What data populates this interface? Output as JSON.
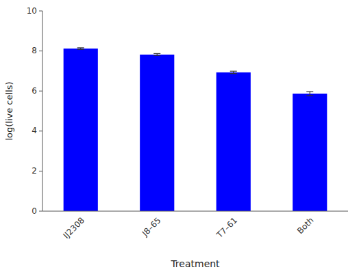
{
  "chart_data": {
    "type": "bar",
    "categories": [
      "IJ2308",
      "J8–65",
      "T7–61",
      "Both"
    ],
    "values": [
      8.12,
      7.82,
      6.93,
      5.87
    ],
    "errors": [
      0.04,
      0.05,
      0.06,
      0.1
    ],
    "color": "#0000FF",
    "xlabel": "Treatment",
    "ylabel": "log(live cells)",
    "ylim": [
      0,
      10
    ],
    "yticks": [
      0,
      2,
      4,
      6,
      8,
      10
    ],
    "grid": false
  }
}
